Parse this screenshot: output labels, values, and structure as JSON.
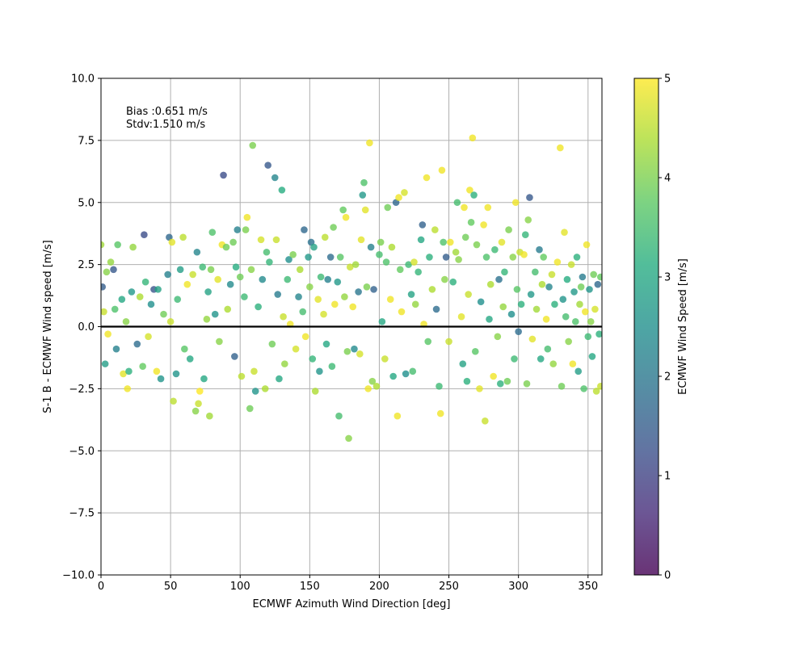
{
  "chart_data": {
    "type": "scatter",
    "title": "",
    "xlabel": "ECMWF Azimuth Wind Direction [deg]",
    "ylabel": "S-1 B - ECMWF Wind speed [m/s]",
    "xlim": [
      0,
      360
    ],
    "ylim": [
      -10,
      10
    ],
    "xticks": [
      0,
      50,
      100,
      150,
      200,
      250,
      300,
      350
    ],
    "xtick_labels": [
      "0",
      "50",
      "100",
      "150",
      "200",
      "250",
      "300",
      "350"
    ],
    "yticks": [
      -10,
      -7.5,
      -5,
      -2.5,
      0,
      2.5,
      5,
      7.5,
      10
    ],
    "ytick_labels": [
      "−10.0",
      "−7.5",
      "−5.0",
      "−2.5",
      "0.0",
      "2.5",
      "5.0",
      "7.5",
      "10.0"
    ],
    "grid": true,
    "zero_line": 0,
    "annotation": {
      "line1": "Bias :0.651 m/s",
      "line2": "Stdv:1.510 m/s"
    },
    "colorbar": {
      "label": "ECMWF Wind Speed [m/s]",
      "colormap": "viridis",
      "range": [
        0,
        5
      ],
      "ticks": [
        0,
        1,
        2,
        3,
        4,
        5
      ],
      "tick_labels": [
        "0",
        "1",
        "2",
        "3",
        "4",
        "5"
      ]
    },
    "points": [
      [
        0,
        3.3,
        4.3
      ],
      [
        1,
        1.6,
        1.5
      ],
      [
        2,
        0.6,
        4.6
      ],
      [
        3,
        -1.5,
        2.8
      ],
      [
        4,
        2.2,
        4.1
      ],
      [
        5,
        -0.3,
        4.9
      ],
      [
        7,
        2.6,
        4.2
      ],
      [
        9,
        2.3,
        1.4
      ],
      [
        10,
        0.7,
        3.6
      ],
      [
        11,
        -0.9,
        2.2
      ],
      [
        12,
        3.3,
        3.7
      ],
      [
        15,
        1.1,
        3.0
      ],
      [
        16,
        -1.9,
        4.8
      ],
      [
        18,
        0.2,
        4.1
      ],
      [
        19,
        -2.5,
        4.9
      ],
      [
        20,
        -1.8,
        3.2
      ],
      [
        22,
        1.4,
        2.7
      ],
      [
        23,
        3.2,
        4.2
      ],
      [
        26,
        -0.7,
        1.8
      ],
      [
        28,
        1.2,
        4.4
      ],
      [
        30,
        -1.6,
        3.8
      ],
      [
        31,
        3.7,
        1.2
      ],
      [
        32,
        1.8,
        3.3
      ],
      [
        34,
        -0.4,
        4.7
      ],
      [
        36,
        0.9,
        2.5
      ],
      [
        38,
        1.5,
        1.3
      ],
      [
        40,
        -1.8,
        4.9
      ],
      [
        41,
        1.5,
        2.9
      ],
      [
        43,
        -2.1,
        2.6
      ],
      [
        45,
        0.5,
        3.9
      ],
      [
        48,
        2.1,
        2.2
      ],
      [
        49,
        3.6,
        1.7
      ],
      [
        50,
        0.2,
        4.6
      ],
      [
        51,
        3.4,
        4.8
      ],
      [
        52,
        -3.0,
        4.5
      ],
      [
        54,
        -1.9,
        2.6
      ],
      [
        55,
        1.1,
        3.4
      ],
      [
        57,
        2.3,
        2.8
      ],
      [
        59,
        3.6,
        4.5
      ],
      [
        60,
        -0.9,
        3.7
      ],
      [
        62,
        1.7,
        4.9
      ],
      [
        64,
        -1.3,
        3.0
      ],
      [
        66,
        2.1,
        4.6
      ],
      [
        68,
        -3.4,
        4.1
      ],
      [
        69,
        3.0,
        2.3
      ],
      [
        70,
        -3.1,
        4.6
      ],
      [
        71,
        -2.6,
        5.0
      ],
      [
        73,
        2.4,
        3.4
      ],
      [
        74,
        -2.1,
        3.0
      ],
      [
        76,
        0.3,
        4.2
      ],
      [
        77,
        1.4,
        2.9
      ],
      [
        78,
        -3.6,
        4.3
      ],
      [
        79,
        2.3,
        4.0
      ],
      [
        80,
        3.8,
        3.6
      ],
      [
        82,
        0.5,
        2.6
      ],
      [
        84,
        1.9,
        4.8
      ],
      [
        85,
        -0.6,
        4.1
      ],
      [
        87,
        3.3,
        4.9
      ],
      [
        88,
        6.1,
        1.2
      ],
      [
        90,
        3.2,
        3.9
      ],
      [
        91,
        0.7,
        4.4
      ],
      [
        93,
        1.7,
        2.4
      ],
      [
        95,
        3.4,
        3.9
      ],
      [
        96,
        -1.2,
        1.6
      ],
      [
        97,
        2.4,
        3.1
      ],
      [
        98,
        3.9,
        2.2
      ],
      [
        100,
        2.0,
        3.9
      ],
      [
        101,
        -2.0,
        4.5
      ],
      [
        103,
        1.2,
        3.4
      ],
      [
        104,
        3.9,
        4.0
      ],
      [
        105,
        4.4,
        4.9
      ],
      [
        107,
        -3.3,
        3.9
      ],
      [
        108,
        2.3,
        4.1
      ],
      [
        109,
        7.3,
        4.0
      ],
      [
        110,
        -1.8,
        4.6
      ],
      [
        111,
        -2.6,
        2.6
      ],
      [
        113,
        0.8,
        3.2
      ],
      [
        115,
        3.5,
        4.7
      ],
      [
        116,
        1.9,
        2.4
      ],
      [
        118,
        -2.5,
        4.4
      ],
      [
        119,
        3.0,
        3.5
      ],
      [
        120,
        6.5,
        1.4
      ],
      [
        121,
        2.6,
        3.3
      ],
      [
        123,
        -0.7,
        3.9
      ],
      [
        125,
        6.0,
        2.3
      ],
      [
        126,
        3.5,
        4.6
      ],
      [
        127,
        1.3,
        2.1
      ],
      [
        128,
        -2.1,
        3.0
      ],
      [
        130,
        5.5,
        3.1
      ],
      [
        131,
        0.4,
        4.6
      ],
      [
        132,
        -1.5,
        4.2
      ],
      [
        134,
        1.9,
        3.4
      ],
      [
        135,
        2.7,
        2.5
      ],
      [
        136,
        0.1,
        4.9
      ],
      [
        138,
        2.9,
        4.0
      ],
      [
        140,
        -0.9,
        4.7
      ],
      [
        142,
        1.2,
        2.3
      ],
      [
        143,
        2.3,
        4.4
      ],
      [
        145,
        0.6,
        3.5
      ],
      [
        146,
        3.9,
        1.7
      ],
      [
        147,
        -0.4,
        4.9
      ],
      [
        149,
        2.8,
        2.7
      ],
      [
        150,
        1.6,
        4.1
      ],
      [
        151,
        3.4,
        1.9
      ],
      [
        152,
        -1.3,
        3.3
      ],
      [
        153,
        3.2,
        2.9
      ],
      [
        154,
        -2.6,
        4.4
      ],
      [
        156,
        1.1,
        4.8
      ],
      [
        157,
        -1.8,
        2.6
      ],
      [
        158,
        2.0,
        3.4
      ],
      [
        160,
        0.5,
        4.7
      ],
      [
        161,
        3.6,
        4.5
      ],
      [
        162,
        -0.7,
        3.0
      ],
      [
        163,
        1.9,
        2.2
      ],
      [
        165,
        2.8,
        1.8
      ],
      [
        166,
        -1.6,
        3.4
      ],
      [
        167,
        4.0,
        3.9
      ],
      [
        168,
        0.9,
        4.9
      ],
      [
        170,
        1.8,
        2.7
      ],
      [
        171,
        -3.6,
        3.5
      ],
      [
        172,
        2.8,
        3.7
      ],
      [
        174,
        4.7,
        3.8
      ],
      [
        175,
        1.2,
        4.2
      ],
      [
        176,
        4.4,
        4.9
      ],
      [
        177,
        -1.0,
        4.0
      ],
      [
        178,
        -4.5,
        4.1
      ],
      [
        179,
        2.4,
        4.6
      ],
      [
        181,
        0.8,
        4.9
      ],
      [
        182,
        -0.9,
        2.4
      ],
      [
        183,
        2.5,
        4.3
      ],
      [
        185,
        1.4,
        2.0
      ],
      [
        186,
        -1.1,
        4.7
      ],
      [
        187,
        3.5,
        4.8
      ],
      [
        188,
        5.3,
        2.7
      ],
      [
        189,
        5.8,
        3.6
      ],
      [
        190,
        4.7,
        4.8
      ],
      [
        191,
        1.6,
        4.0
      ],
      [
        192,
        -2.5,
        4.9
      ],
      [
        193,
        7.4,
        4.9
      ],
      [
        194,
        3.2,
        2.2
      ],
      [
        195,
        -2.2,
        4.1
      ],
      [
        196,
        1.5,
        1.6
      ],
      [
        198,
        -2.4,
        4.4
      ],
      [
        200,
        2.9,
        3.5
      ],
      [
        201,
        3.4,
        4.0
      ],
      [
        202,
        0.2,
        3.0
      ],
      [
        204,
        -1.3,
        4.6
      ],
      [
        205,
        2.6,
        3.6
      ],
      [
        206,
        4.8,
        3.9
      ],
      [
        208,
        1.1,
        4.9
      ],
      [
        209,
        3.2,
        4.4
      ],
      [
        210,
        -2.0,
        3.0
      ],
      [
        212,
        5.0,
        1.7
      ],
      [
        213,
        -3.6,
        4.9
      ],
      [
        214,
        5.2,
        4.9
      ],
      [
        215,
        2.3,
        3.8
      ],
      [
        216,
        0.6,
        4.9
      ],
      [
        218,
        5.4,
        4.7
      ],
      [
        219,
        -1.9,
        2.5
      ],
      [
        221,
        2.5,
        3.4
      ],
      [
        223,
        1.3,
        2.9
      ],
      [
        224,
        -1.8,
        3.5
      ],
      [
        225,
        2.6,
        4.7
      ],
      [
        226,
        0.9,
        4.2
      ],
      [
        228,
        2.2,
        3.3
      ],
      [
        230,
        3.5,
        3.0
      ],
      [
        231,
        4.1,
        1.6
      ],
      [
        232,
        0.1,
        4.9
      ],
      [
        234,
        6.0,
        4.9
      ],
      [
        235,
        -0.6,
        3.7
      ],
      [
        236,
        2.8,
        3.2
      ],
      [
        238,
        1.5,
        4.4
      ],
      [
        240,
        3.9,
        4.5
      ],
      [
        241,
        0.7,
        1.8
      ],
      [
        243,
        -2.4,
        3.4
      ],
      [
        244,
        -3.5,
        4.9
      ],
      [
        245,
        6.3,
        4.9
      ],
      [
        246,
        3.4,
        3.6
      ],
      [
        247,
        1.9,
        4.1
      ],
      [
        248,
        2.8,
        1.5
      ],
      [
        250,
        -0.6,
        4.6
      ],
      [
        251,
        3.4,
        4.9
      ],
      [
        253,
        1.8,
        3.2
      ],
      [
        255,
        3.0,
        4.3
      ],
      [
        256,
        5.0,
        3.5
      ],
      [
        257,
        2.7,
        4.1
      ],
      [
        259,
        0.4,
        4.8
      ],
      [
        260,
        -1.5,
        2.9
      ],
      [
        261,
        4.8,
        4.9
      ],
      [
        262,
        3.6,
        3.9
      ],
      [
        263,
        -2.2,
        3.2
      ],
      [
        264,
        1.3,
        4.6
      ],
      [
        265,
        5.5,
        4.9
      ],
      [
        266,
        4.2,
        3.8
      ],
      [
        267,
        7.6,
        4.9
      ],
      [
        268,
        5.3,
        3.2
      ],
      [
        269,
        -1.0,
        3.7
      ],
      [
        270,
        3.3,
        4.0
      ],
      [
        272,
        -2.5,
        4.8
      ],
      [
        273,
        1.0,
        2.5
      ],
      [
        275,
        4.1,
        4.9
      ],
      [
        276,
        -3.8,
        4.6
      ],
      [
        277,
        2.8,
        3.6
      ],
      [
        278,
        4.8,
        4.9
      ],
      [
        279,
        0.3,
        3.0
      ],
      [
        280,
        1.7,
        4.4
      ],
      [
        282,
        -2.0,
        4.9
      ],
      [
        283,
        3.1,
        3.4
      ],
      [
        285,
        -0.4,
        4.1
      ],
      [
        286,
        1.9,
        1.9
      ],
      [
        287,
        -2.3,
        3.2
      ],
      [
        288,
        3.4,
        4.8
      ],
      [
        289,
        0.8,
        4.2
      ],
      [
        290,
        2.2,
        3.3
      ],
      [
        292,
        -2.2,
        3.9
      ],
      [
        293,
        3.9,
        4.0
      ],
      [
        295,
        0.5,
        2.5
      ],
      [
        296,
        2.8,
        4.1
      ],
      [
        297,
        -1.3,
        3.4
      ],
      [
        298,
        5.0,
        4.9
      ],
      [
        299,
        1.5,
        3.7
      ],
      [
        300,
        -0.2,
        1.8
      ],
      [
        301,
        3.0,
        4.6
      ],
      [
        302,
        0.9,
        3.2
      ],
      [
        304,
        2.9,
        4.9
      ],
      [
        305,
        3.7,
        3.3
      ],
      [
        306,
        -2.3,
        4.0
      ],
      [
        307,
        4.3,
        4.1
      ],
      [
        308,
        5.2,
        1.4
      ],
      [
        309,
        1.3,
        2.7
      ],
      [
        310,
        -0.5,
        4.8
      ],
      [
        312,
        2.2,
        3.5
      ],
      [
        313,
        0.7,
        4.3
      ],
      [
        315,
        3.1,
        2.1
      ],
      [
        316,
        -1.3,
        3.0
      ],
      [
        317,
        1.7,
        4.4
      ],
      [
        318,
        2.8,
        3.8
      ],
      [
        320,
        0.3,
        4.9
      ],
      [
        321,
        -0.9,
        3.5
      ],
      [
        322,
        1.6,
        2.3
      ],
      [
        324,
        2.1,
        4.6
      ],
      [
        325,
        -1.5,
        4.2
      ],
      [
        326,
        0.9,
        3.2
      ],
      [
        328,
        2.6,
        4.9
      ],
      [
        330,
        7.2,
        4.9
      ],
      [
        331,
        -2.4,
        3.9
      ],
      [
        332,
        1.1,
        2.6
      ],
      [
        333,
        3.8,
        4.8
      ],
      [
        334,
        0.4,
        3.5
      ],
      [
        335,
        1.9,
        3.1
      ],
      [
        336,
        -0.6,
        4.1
      ],
      [
        338,
        2.5,
        4.6
      ],
      [
        339,
        -1.5,
        4.9
      ],
      [
        340,
        1.4,
        2.7
      ],
      [
        341,
        0.2,
        3.6
      ],
      [
        342,
        2.8,
        3.2
      ],
      [
        343,
        -1.8,
        2.8
      ],
      [
        344,
        0.9,
        4.3
      ],
      [
        345,
        1.6,
        3.9
      ],
      [
        346,
        2.0,
        2.1
      ],
      [
        347,
        -2.5,
        3.6
      ],
      [
        348,
        0.6,
        4.9
      ],
      [
        349,
        3.3,
        4.9
      ],
      [
        350,
        -0.4,
        3.4
      ],
      [
        351,
        1.5,
        2.6
      ],
      [
        352,
        0.2,
        4.1
      ],
      [
        353,
        -1.2,
        3.0
      ],
      [
        354,
        2.1,
        3.9
      ],
      [
        355,
        0.7,
        4.7
      ],
      [
        356,
        -2.6,
        4.5
      ],
      [
        357,
        1.7,
        1.7
      ],
      [
        358,
        -0.3,
        3.2
      ],
      [
        359,
        2.0,
        3.8
      ],
      [
        359,
        -2.4,
        4.6
      ]
    ]
  }
}
